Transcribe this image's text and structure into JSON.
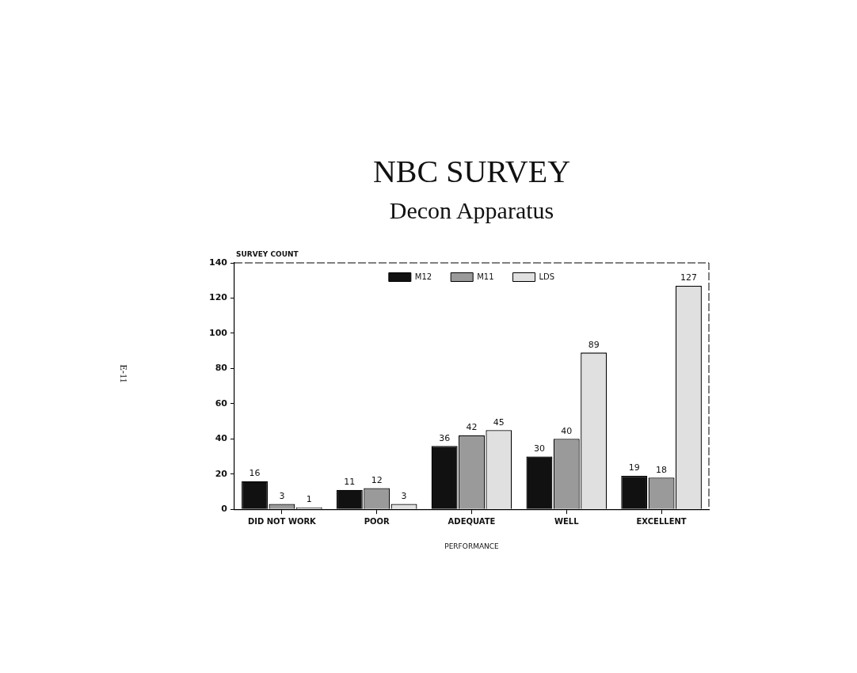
{
  "chart_data": {
    "type": "bar",
    "title": "NBC SURVEY",
    "subtitle": "Decon Apparatus",
    "xlabel": "PERFORMANCE",
    "ylabel": "SURVEY COUNT",
    "annotations": [
      "E-11"
    ],
    "categories": [
      "DID NOT WORK",
      "POOR",
      "ADEQUATE",
      "WELL",
      "EXCELLENT"
    ],
    "series": [
      {
        "name": "M12",
        "color": "#111111",
        "values": [
          16,
          11,
          36,
          30,
          19
        ]
      },
      {
        "name": "M11",
        "color": "#9a9a9a",
        "values": [
          3,
          12,
          42,
          40,
          18
        ]
      },
      {
        "name": "LDS",
        "color": "#e0e0e0",
        "values": [
          1,
          3,
          45,
          89,
          127
        ]
      }
    ],
    "ylim": [
      0,
      140
    ],
    "yticks": [
      0,
      20,
      40,
      60,
      80,
      100,
      120,
      140
    ],
    "data_labels": true,
    "legend": "top",
    "grid": false
  }
}
